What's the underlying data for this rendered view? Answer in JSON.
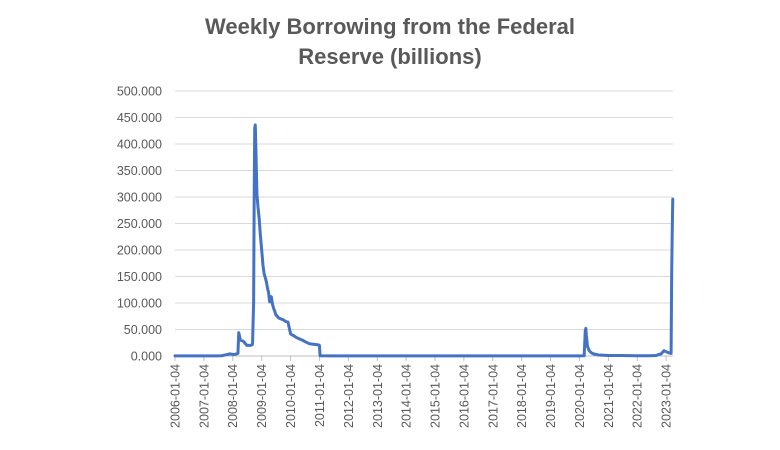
{
  "chart_data": {
    "type": "line",
    "title_lines": [
      "Weekly Borrowing from the Federal",
      "Reserve (billions)"
    ],
    "xlabel": "",
    "ylabel": "",
    "ylim": [
      0,
      500
    ],
    "y_ticks": [
      "0.000",
      "50.000",
      "100.000",
      "150.000",
      "200.000",
      "250.000",
      "300.000",
      "350.000",
      "400.000",
      "450.000",
      "500.000"
    ],
    "x_ticks": [
      "2006-01-04",
      "2007-01-04",
      "2008-01-04",
      "2009-01-04",
      "2010-01-04",
      "2011-01-04",
      "2012-01-04",
      "2013-01-04",
      "2014-01-04",
      "2015-01-04",
      "2016-01-04",
      "2017-01-04",
      "2018-01-04",
      "2019-01-04",
      "2020-01-04",
      "2021-01-04",
      "2022-01-04",
      "2023-01-04"
    ],
    "xlim": [
      "2006-01-04",
      "2023-04-01"
    ],
    "grid": true,
    "legend": "none",
    "line_color": "#4472C4",
    "series": [
      {
        "x": [
          "2006-01-04",
          "2006-06-01",
          "2007-01-04",
          "2007-06-01",
          "2007-08-15",
          "2007-10-01",
          "2007-12-01",
          "2008-01-04",
          "2008-02-01",
          "2008-03-10",
          "2008-03-20",
          "2008-04-10",
          "2008-05-15",
          "2008-07-01",
          "2008-08-20",
          "2008-09-10",
          "2008-09-24",
          "2008-10-01",
          "2008-10-08",
          "2008-10-15",
          "2008-10-22",
          "2008-10-29",
          "2008-11-05",
          "2008-11-19",
          "2008-12-03",
          "2008-12-17",
          "2009-01-04",
          "2009-01-21",
          "2009-02-04",
          "2009-02-18",
          "2009-03-04",
          "2009-03-18",
          "2009-04-01",
          "2009-04-15",
          "2009-05-06",
          "2009-05-20",
          "2009-06-03",
          "2009-06-17",
          "2009-07-01",
          "2009-08-05",
          "2009-09-02",
          "2009-10-07",
          "2009-11-04",
          "2009-12-02",
          "2010-01-04",
          "2010-01-20",
          "2010-02-17",
          "2010-03-17",
          "2010-04-14",
          "2010-06-02",
          "2010-07-07",
          "2010-09-01",
          "2010-11-03",
          "2010-12-22",
          "2011-01-04",
          "2011-01-12",
          "2011-06-01",
          "2012-01-04",
          "2013-01-04",
          "2014-01-04",
          "2015-01-04",
          "2016-01-04",
          "2017-01-04",
          "2018-01-04",
          "2019-01-04",
          "2019-09-01",
          "2020-01-04",
          "2020-03-04",
          "2020-03-18",
          "2020-03-25",
          "2020-04-01",
          "2020-04-15",
          "2020-05-06",
          "2020-06-03",
          "2020-07-01",
          "2020-09-02",
          "2021-01-04",
          "2021-06-02",
          "2022-01-04",
          "2022-06-01",
          "2022-09-01",
          "2022-10-05",
          "2022-11-02",
          "2022-12-07",
          "2023-01-04",
          "2023-02-08",
          "2023-03-01",
          "2023-03-08",
          "2023-03-15",
          "2023-03-22",
          "2023-03-29"
        ],
        "y": [
          0.3,
          0.3,
          0.3,
          0.3,
          0.5,
          2,
          4,
          3,
          3,
          5,
          44,
          30,
          28,
          20,
          20,
          22,
          100,
          300,
          430,
          436,
          395,
          350,
          305,
          280,
          260,
          230,
          200,
          170,
          155,
          148,
          140,
          128,
          120,
          102,
          112,
          98,
          90,
          85,
          78,
          72,
          70,
          68,
          65,
          64,
          42,
          40,
          38,
          35,
          33,
          30,
          27,
          23,
          22,
          21,
          20,
          0.5,
          0.3,
          0.3,
          0.3,
          0.3,
          0.3,
          0.3,
          0.3,
          0.3,
          0.3,
          0.3,
          0.3,
          0.5,
          48,
          52,
          38,
          18,
          10,
          6,
          4,
          2,
          1,
          1,
          0.5,
          0.5,
          1,
          3,
          4,
          10,
          8,
          6,
          5,
          5,
          153,
          230,
          296
        ]
      }
    ]
  }
}
